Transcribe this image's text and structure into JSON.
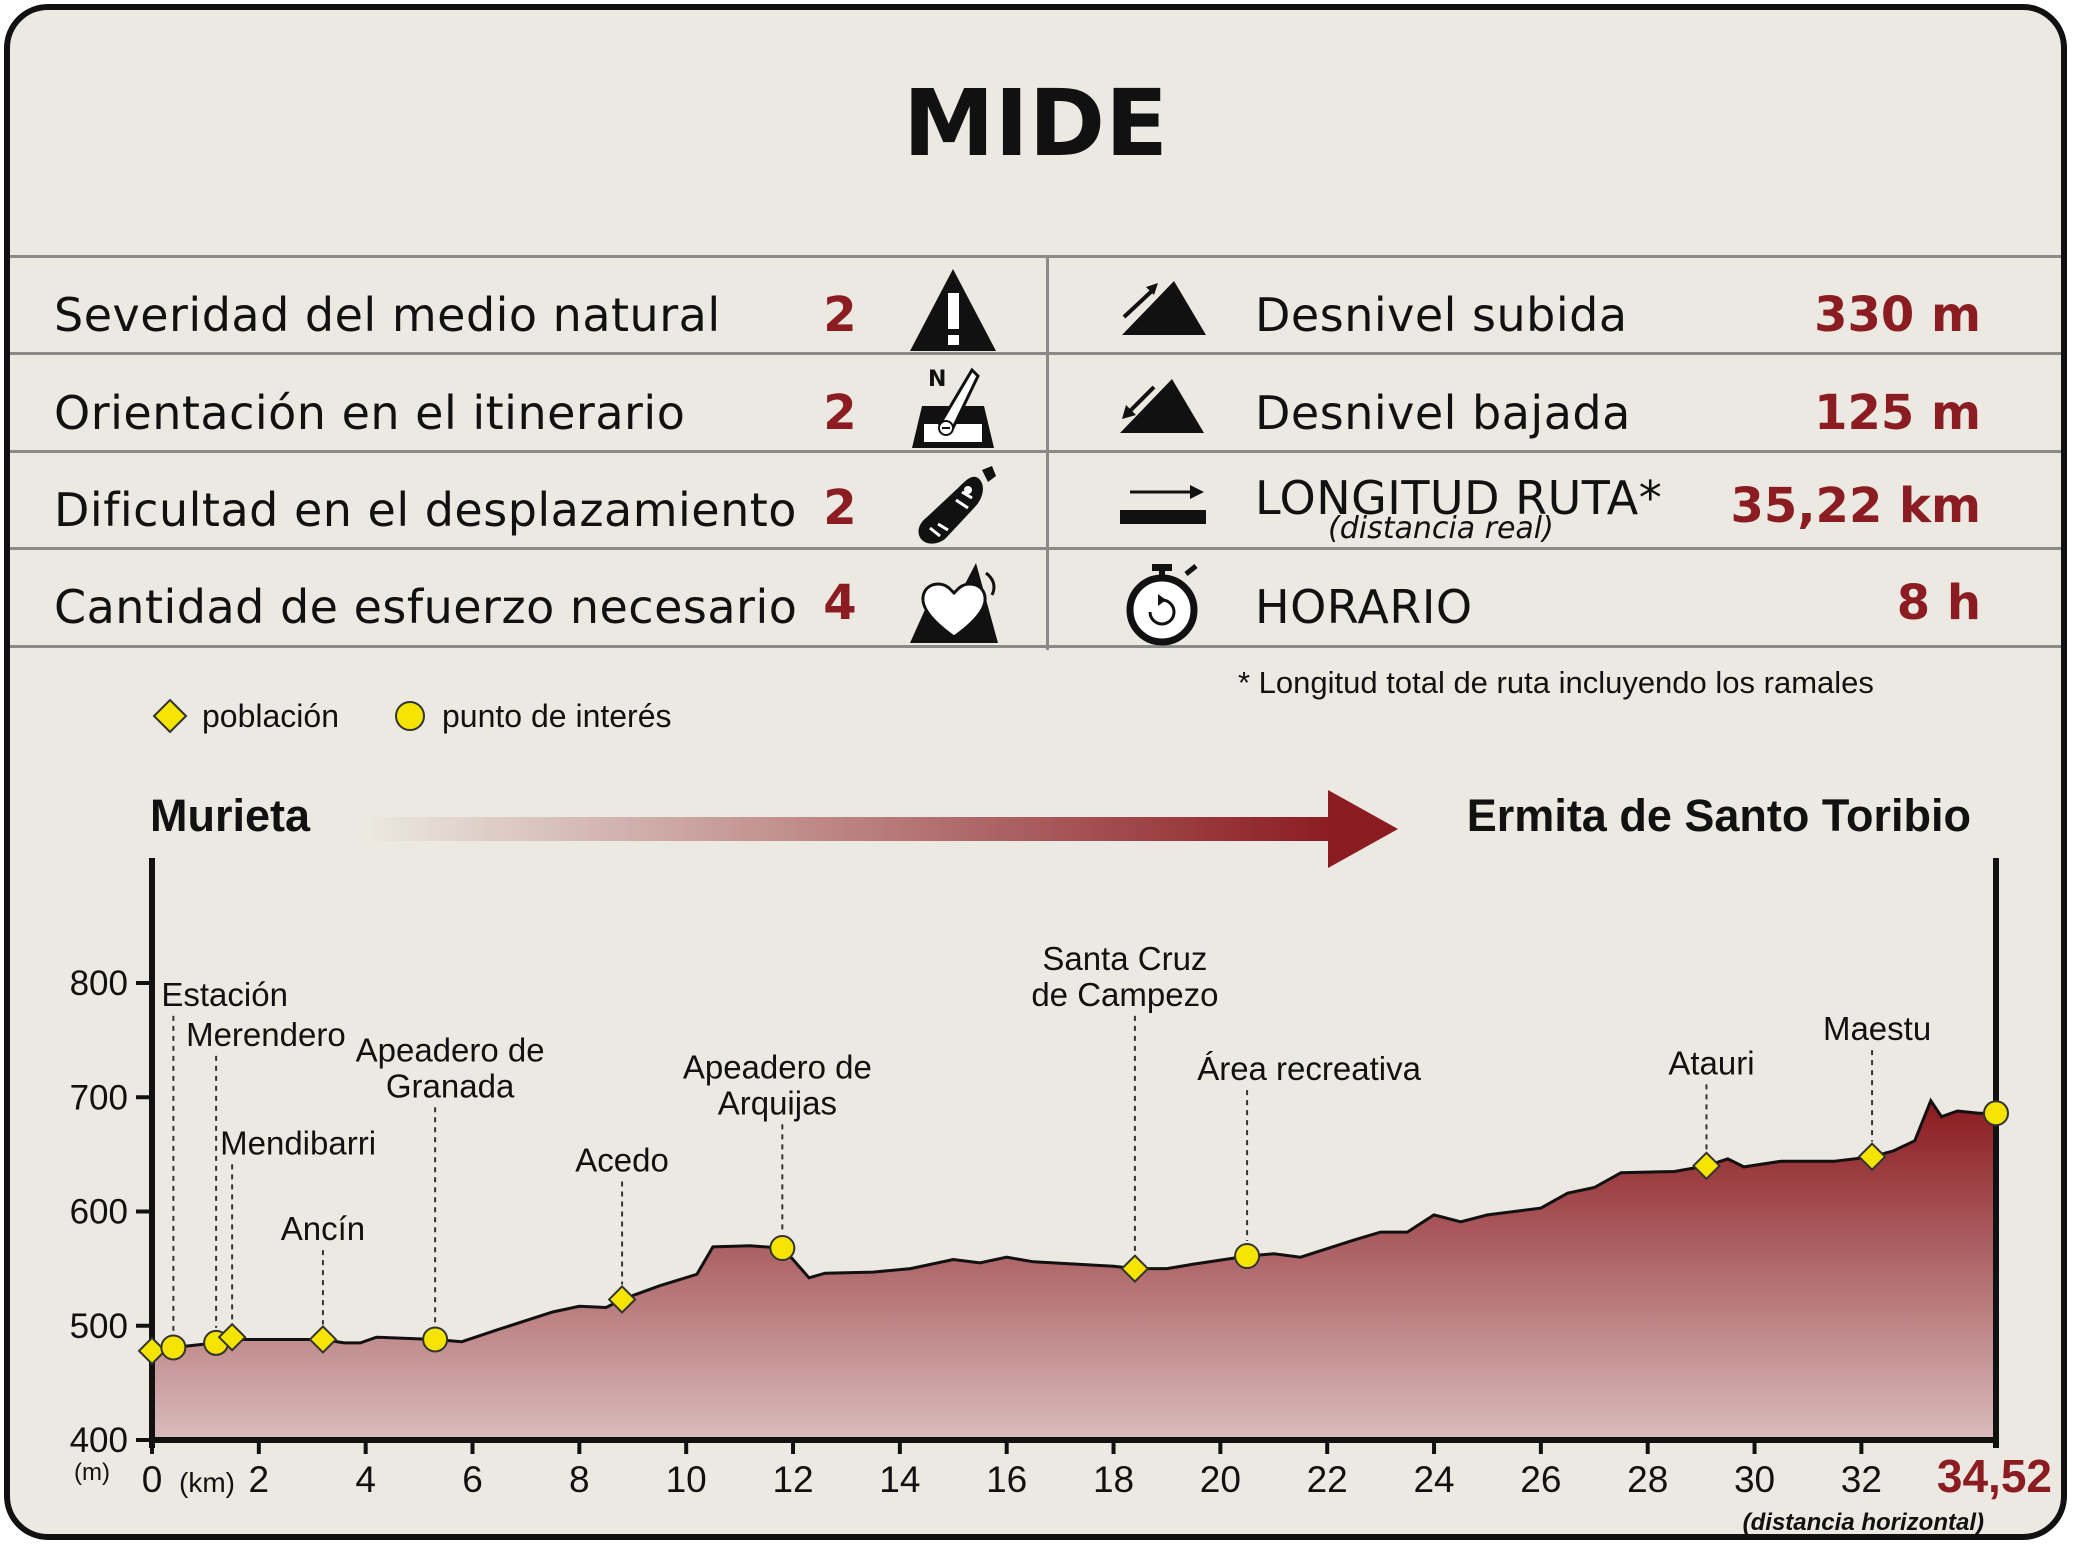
{
  "header": {
    "title": "MIDE"
  },
  "mide": [
    {
      "label": "Severidad del medio natural",
      "value": "2",
      "icon": "warning-mountain-icon"
    },
    {
      "label": "Orientación en el itinerario",
      "value": "2",
      "icon": "compass-orientation-icon"
    },
    {
      "label": "Dificultad en el desplazamiento",
      "value": "2",
      "icon": "footprint-icon"
    },
    {
      "label": "Cantidad de esfuerzo necesario",
      "value": "4",
      "icon": "heart-effort-icon"
    }
  ],
  "route_stats": [
    {
      "label": "Desnivel subida",
      "sub": "",
      "value": "330 m",
      "icon": "ascent-icon"
    },
    {
      "label": "Desnivel bajada",
      "sub": "",
      "value": "125 m",
      "icon": "descent-icon"
    },
    {
      "label": "LONGITUD RUTA*",
      "sub": "(distancia real)",
      "value": "35,22 km",
      "icon": "distance-arrow-icon"
    },
    {
      "label": "HORARIO",
      "sub": "",
      "value": "8 h",
      "icon": "stopwatch-icon"
    }
  ],
  "footnote": "* Longitud total de ruta incluyendo los ramales",
  "legend": {
    "town": "población",
    "poi": "punto de interés"
  },
  "route": {
    "from": "Murieta",
    "to": "Ermita de Santo Toribio"
  },
  "colors": {
    "accent": "#8b1c22",
    "profile_top": "#8a1a1f",
    "profile_bottom": "#d9bcbc",
    "marker_fill": "#f5e400",
    "background": "#ebe9e1"
  },
  "chart_data": {
    "type": "area",
    "title": "",
    "xlabel": "(km)",
    "ylabel": "(m)",
    "xlim": [
      0,
      34.52
    ],
    "ylim": [
      400,
      800
    ],
    "x_end_label": "34,52",
    "x_end_note": "(distancia horizontal)",
    "xticks": [
      "0",
      "2",
      "4",
      "6",
      "8",
      "10",
      "12",
      "14",
      "16",
      "18",
      "20",
      "22",
      "24",
      "26",
      "28",
      "30",
      "32"
    ],
    "yticks": [
      "400",
      "500",
      "600",
      "700",
      "800"
    ],
    "profile": {
      "x": [
        0,
        0.4,
        1.2,
        1.5,
        2.0,
        3.2,
        3.6,
        3.9,
        4.2,
        4.7,
        5.3,
        5.8,
        6.5,
        7.5,
        8.0,
        8.5,
        8.8,
        9.5,
        10.2,
        10.5,
        11.2,
        11.8,
        12.0,
        12.3,
        12.6,
        13.5,
        14.2,
        15.0,
        15.5,
        16.0,
        16.5,
        18.0,
        18.4,
        19.0,
        19.5,
        20.5,
        21.0,
        21.5,
        22.5,
        23.0,
        23.5,
        24.0,
        24.5,
        25.0,
        25.5,
        26.0,
        26.5,
        27.0,
        27.5,
        28.5,
        29.1,
        29.5,
        29.8,
        30.5,
        31.5,
        32.2,
        32.6,
        33.0,
        33.3,
        33.5,
        33.8,
        34.2,
        34.52
      ],
      "y": [
        478,
        481,
        485,
        488,
        488,
        488,
        485,
        485,
        490,
        489,
        488,
        486,
        497,
        512,
        517,
        516,
        523,
        535,
        545,
        569,
        570,
        568,
        558,
        542,
        546,
        547,
        550,
        558,
        555,
        560,
        556,
        552,
        550,
        550,
        554,
        561,
        563,
        560,
        575,
        582,
        582,
        597,
        591,
        597,
        600,
        603,
        616,
        621,
        634,
        635,
        640,
        646,
        639,
        644,
        644,
        648,
        653,
        662,
        697,
        683,
        688,
        686,
        686
      ]
    },
    "points": [
      {
        "type": "población",
        "x": 0.0,
        "y": 478,
        "label": ""
      },
      {
        "type": "punto de interés",
        "x": 0.4,
        "y": 481,
        "label": "Estación"
      },
      {
        "type": "punto de interés",
        "x": 1.2,
        "y": 485,
        "label": "Merendero"
      },
      {
        "type": "población",
        "x": 1.5,
        "y": 490,
        "label": "Mendibarri"
      },
      {
        "type": "población",
        "x": 3.2,
        "y": 488,
        "label": "Ancín"
      },
      {
        "type": "punto de interés",
        "x": 5.3,
        "y": 488,
        "label": "Apeadero de Granada"
      },
      {
        "type": "población",
        "x": 8.8,
        "y": 523,
        "label": "Acedo"
      },
      {
        "type": "punto de interés",
        "x": 11.8,
        "y": 568,
        "label": "Apeadero de Arquijas"
      },
      {
        "type": "población",
        "x": 18.4,
        "y": 550,
        "label": "Santa Cruz de Campezo"
      },
      {
        "type": "punto de interés",
        "x": 20.5,
        "y": 561,
        "label": "Área recreativa"
      },
      {
        "type": "población",
        "x": 29.1,
        "y": 640,
        "label": "Atauri"
      },
      {
        "type": "población",
        "x": 32.2,
        "y": 648,
        "label": "Maestu"
      },
      {
        "type": "punto de interés",
        "x": 34.52,
        "y": 686,
        "label": ""
      }
    ],
    "labels": [
      {
        "lines": [
          "Estación"
        ],
        "px": 0.4,
        "label_y": 780,
        "align": "start",
        "dx": -12
      },
      {
        "lines": [
          "Merendero"
        ],
        "px": 1.2,
        "label_y": 745,
        "align": "start",
        "dx": -30
      },
      {
        "lines": [
          "Mendibarri"
        ],
        "px": 1.5,
        "label_y": 650,
        "align": "start",
        "dx": -12
      },
      {
        "lines": [
          "Ancín"
        ],
        "px": 3.2,
        "label_y": 575,
        "align": "middle",
        "dx": 0
      },
      {
        "lines": [
          "Apeadero de",
          "Granada"
        ],
        "px": 5.3,
        "label_y": 700,
        "align": "middle",
        "dx": 15
      },
      {
        "lines": [
          "Acedo"
        ],
        "px": 8.8,
        "label_y": 635,
        "align": "middle",
        "dx": 0
      },
      {
        "lines": [
          "Apeadero de",
          "Arquijas"
        ],
        "px": 11.8,
        "label_y": 685,
        "align": "middle",
        "dx": -5
      },
      {
        "lines": [
          "Santa Cruz",
          "de Campezo"
        ],
        "px": 18.4,
        "label_y": 780,
        "align": "middle",
        "dx": -10
      },
      {
        "lines": [
          "Área recreativa"
        ],
        "px": 20.5,
        "label_y": 715,
        "align": "middle",
        "dx": 62
      },
      {
        "lines": [
          "Atauri"
        ],
        "px": 29.1,
        "label_y": 720,
        "align": "middle",
        "dx": 5
      },
      {
        "lines": [
          "Maestu"
        ],
        "px": 32.2,
        "label_y": 750,
        "align": "middle",
        "dx": 5
      }
    ]
  }
}
